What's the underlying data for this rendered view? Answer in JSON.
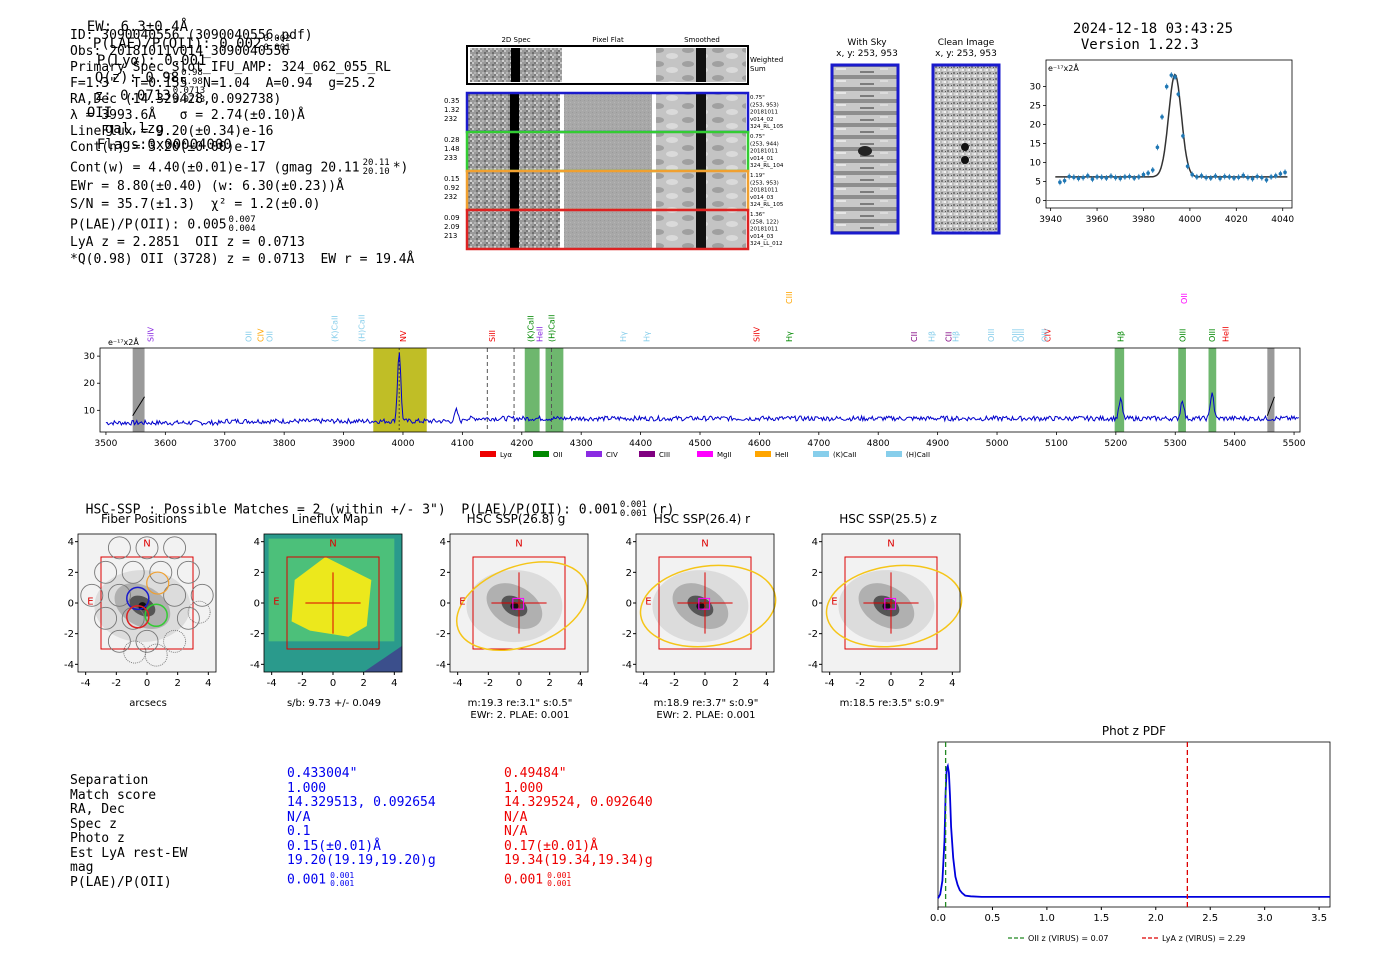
{
  "header": {
    "ew": "EW: 6.3±0.4Å",
    "plae": "P(LAE)/P(OII): 0.002",
    "plae_sup": "0.002",
    "plae_sub": "0.001",
    "plya": "P(Lyα): 0.001",
    "qz": "Q(z): 0.98",
    "qz_sup": "0.98",
    "qz_sub": "0.98",
    "z": "z: 0.0713",
    "z_sup": "0.0713",
    "z_sub": "0.0713",
    "z_line": "OII",
    "flags_a": "gal,lzg",
    "flags_b": "Flags:0x00004000",
    "timestamp": "2024-12-18 03:43:25",
    "version": "Version 1.22.3"
  },
  "info": {
    "id": "ID: 3090040556 (3090040556.pdf)",
    "obs": "Obs: 20181011v014_3090040556",
    "primary": "Primary Spec_Slot_IFU_AMP: 324_062_055_RL",
    "params": "F=1.3\"  T=0.155  N=1.04  A=0.94  g=25.2",
    "radec": "RA,Dec (14.329428,0.092738)",
    "lambda": "λ = 3993.6Å   σ = 2.74(±0.10)Å",
    "lineflux": "LineFlux = 9.20(±0.34)e-16",
    "contn": "Cont(n) = 3.20(±0.00)e-17",
    "contw": "Cont(w) = 4.40(±0.01)e-17 (gmag 20.11",
    "contw_sup": "20.11",
    "contw_sub": "20.10",
    "contw_end": "*)",
    "ewr": "EWr = 8.80(±0.40) (w: 6.30(±0.23))Å",
    "sn": "S/N = 35.7(±1.3)  χ² = 1.2(±0.0)",
    "plae2": "P(LAE)/P(OII): 0.005",
    "plae2_sup": "0.007",
    "plae2_sub": "0.004",
    "lya": "LyA z = 2.2851  OII z = 0.0713",
    "qline": "*Q(0.98) OII (3728) z = 0.0713  EW r = 19.4Å"
  },
  "cutouts": {
    "col_headers": [
      "2D Spec",
      "Pixel Flat",
      "Smoothed"
    ],
    "weighted_label": "Weighted\nSum",
    "rows": [
      {
        "nums": [
          "0.35",
          "1.32",
          "232"
        ],
        "color": "#1a1acc",
        "meta": [
          "0.75\"",
          "(253, 953)",
          "20181011",
          "v014_02",
          "324_RL_105"
        ]
      },
      {
        "nums": [
          "0.28",
          "1.48",
          "233"
        ],
        "color": "#33cc33",
        "meta": [
          "0.75\"",
          "(253, 944)",
          "20181011",
          "v014_01",
          "324_RL_104"
        ]
      },
      {
        "nums": [
          "0.15",
          "0.92",
          "232"
        ],
        "color": "#f0a030",
        "meta": [
          "1.19\"",
          "(253, 953)",
          "20181011",
          "v014_03",
          "324_RL_105"
        ]
      },
      {
        "nums": [
          "0.09",
          "2.09",
          "213"
        ],
        "color": "#dd2222",
        "meta": [
          "1.36\"",
          "(258, 122)",
          "20181011",
          "v014_03",
          "324_LL_012"
        ]
      }
    ]
  },
  "sky": {
    "with_sky_title": "With Sky",
    "with_sky_coords": "x, y: 253, 953",
    "clean_title": "Clean Image",
    "clean_coords": "x, y: 253, 953"
  },
  "line_fit": {
    "unit": "e⁻¹⁷x2Å",
    "x_ticks": [
      "3940",
      "3960",
      "3980",
      "4000",
      "4020",
      "4040"
    ],
    "y_ticks": [
      "0",
      "5",
      "10",
      "15",
      "20",
      "25",
      "30"
    ]
  },
  "full_spec": {
    "unit": "e⁻¹⁷x2Å",
    "x_ticks": [
      "3500",
      "3600",
      "3700",
      "3800",
      "3900",
      "4000",
      "4100",
      "4200",
      "4300",
      "4400",
      "4500",
      "4600",
      "4700",
      "4800",
      "4900",
      "5000",
      "5100",
      "5200",
      "5300",
      "5400",
      "5500"
    ],
    "y_ticks": [
      "10",
      "20",
      "30"
    ],
    "legend": [
      {
        "label": "Lyα",
        "color": "#ee0000"
      },
      {
        "label": "OII",
        "color": "#008800"
      },
      {
        "label": "CIV",
        "color": "#8a2be2"
      },
      {
        "label": "CIII",
        "color": "#800080"
      },
      {
        "label": "MgII",
        "color": "#ff00ff"
      },
      {
        "label": "HeII",
        "color": "#ffa500"
      },
      {
        "label": "(K)CaII",
        "color": "#87ceeb"
      },
      {
        "label": "(H)CaII",
        "color": "#87ceeb"
      }
    ],
    "line_labels": [
      {
        "text": "SiIV",
        "w": 3575,
        "color": "#8a2be2"
      },
      {
        "text": "OII",
        "w": 3740,
        "color": "#87ceeb"
      },
      {
        "text": "CIV",
        "w": 3760,
        "color": "#ffa500"
      },
      {
        "text": "OII",
        "w": 3775,
        "color": "#87ceeb"
      },
      {
        "text": "(K)CaII",
        "w": 3885,
        "color": "#87ceeb"
      },
      {
        "text": "(H)CaII",
        "w": 3930,
        "color": "#87ceeb"
      },
      {
        "text": "NV",
        "w": 4000,
        "color": "#ee0000"
      },
      {
        "text": "SiII",
        "w": 4150,
        "color": "#ee0000"
      },
      {
        "text": "(K)CaII",
        "w": 4215,
        "color": "#008800"
      },
      {
        "text": "HeII",
        "w": 4230,
        "color": "#8a2be2"
      },
      {
        "text": "(H)CaII",
        "w": 4250,
        "color": "#008800"
      },
      {
        "text": "Hγ",
        "w": 4370,
        "color": "#87ceeb"
      },
      {
        "text": "Hγ",
        "w": 4410,
        "color": "#87ceeb"
      },
      {
        "text": "SiIV",
        "w": 4595,
        "color": "#ee0000"
      },
      {
        "text": "Hγ",
        "w": 4650,
        "color": "#008800"
      },
      {
        "text": "CIII",
        "w": 4650,
        "color": "#ffa500"
      },
      {
        "text": "CII",
        "w": 4860,
        "color": "#800080"
      },
      {
        "text": "Hβ",
        "w": 4890,
        "color": "#87ceeb"
      },
      {
        "text": "CII",
        "w": 4918,
        "color": "#800080"
      },
      {
        "text": "Hβ",
        "w": 4930,
        "color": "#87ceeb"
      },
      {
        "text": "OIII",
        "w": 4990,
        "color": "#87ceeb"
      },
      {
        "text": "OIII",
        "w": 5030,
        "color": "#87ceeb"
      },
      {
        "text": "OIII",
        "w": 5040,
        "color": "#87ceeb"
      },
      {
        "text": "CIV",
        "w": 5085,
        "color": "#ee0000"
      },
      {
        "text": "OIII",
        "w": 5080,
        "color": "#87ceeb"
      },
      {
        "text": "Hβ",
        "w": 5208,
        "color": "#008800"
      },
      {
        "text": "OIII",
        "w": 5312,
        "color": "#008800"
      },
      {
        "text": "OII",
        "w": 5315,
        "color": "#ff00ff"
      },
      {
        "text": "OIII",
        "w": 5362,
        "color": "#008800"
      },
      {
        "text": "HeII",
        "w": 5385,
        "color": "#ee0000"
      }
    ]
  },
  "hsc": {
    "header": "HSC-SSP : Possible Matches = 2 (within +/- 3\")  P(LAE)/P(OII): 0.001",
    "header_sup": "0.001",
    "header_sub": "0.001",
    "header_end": "(r)",
    "panels": [
      {
        "title": "Fiber Positions",
        "cap1": "arcsecs",
        "cap2": ""
      },
      {
        "title": "Lineflux Map",
        "cap1": "s/b: 9.73 +/- 0.049",
        "cap2": ""
      },
      {
        "title": "HSC SSP(26.8) g",
        "cap1": "m:19.3   re:3.1\"   s:0.5\"",
        "cap2": "EWr: 2. PLAE: 0.001"
      },
      {
        "title": "HSC SSP(26.4) r",
        "cap1": "m:18.9   re:3.7\"   s:0.9\"",
        "cap2": "EWr: 2. PLAE: 0.001"
      },
      {
        "title": "HSC SSP(25.5) z",
        "cap1": "m:18.5   re:3.5\"   s:0.9\"",
        "cap2": ""
      }
    ],
    "axis_ticks_x": [
      "-4",
      "-2",
      "0",
      "2",
      "4"
    ],
    "axis_ticks_y": [
      "4",
      "2",
      "0",
      "-2",
      "-4"
    ],
    "compass_n": "N",
    "compass_e": "E"
  },
  "matches": {
    "labels": [
      "Separation",
      "Match score",
      "RA, Dec",
      "Spec z",
      "Photo z",
      "Est LyA rest-EW",
      "mag",
      "P(LAE)/P(OII)"
    ],
    "col1": [
      "0.433004\"",
      "1.000",
      "14.329513, 0.092654",
      "N/A",
      "0.1",
      "0.15(±0.01)Å",
      "19.20(19.19,19.20)g",
      "0.001"
    ],
    "col1_sup": "0.001",
    "col1_sub": "0.001",
    "col2": [
      "0.49484\"",
      "1.000",
      "14.329524, 0.092640",
      "N/A",
      "N/A",
      "0.17(±0.01)Å",
      "19.34(19.34,19.34)g",
      "0.001"
    ],
    "col2_sup": "0.001",
    "col2_sub": "0.001",
    "col1_color": "#0000ee",
    "col2_color": "#ee0000"
  },
  "photz": {
    "title": "Phot z PDF",
    "x_ticks": [
      "0.0",
      "0.5",
      "1.0",
      "1.5",
      "2.0",
      "2.5",
      "3.0",
      "3.5"
    ],
    "legend_oii": "OII z (VIRUS) = 0.07",
    "legend_lya": "LyA z (VIRUS) = 2.29"
  },
  "chart_data": [
    {
      "type": "line",
      "title": "Line fit",
      "ylabel": "e-17 x2Å",
      "xlim": [
        3938,
        4044
      ],
      "ylim": [
        -2,
        37
      ],
      "x": [
        3944,
        3946,
        3948,
        3950,
        3952,
        3954,
        3956,
        3958,
        3960,
        3962,
        3964,
        3966,
        3968,
        3970,
        3972,
        3974,
        3976,
        3978,
        3980,
        3982,
        3984,
        3986,
        3988,
        3990,
        3992,
        3993.6,
        3995,
        3997,
        3999,
        4001,
        4003,
        4005,
        4007,
        4009,
        4011,
        4013,
        4015,
        4017,
        4019,
        4021,
        4023,
        4025,
        4027,
        4029,
        4031,
        4033,
        4035,
        4037,
        4039,
        4041
      ],
      "y": [
        4.8,
        5.2,
        6.3,
        6.1,
        5.8,
        6.0,
        6.5,
        5.6,
        6.2,
        6.1,
        5.9,
        6.4,
        6.0,
        5.8,
        6.2,
        6.3,
        5.9,
        6.2,
        6.8,
        7.2,
        8.0,
        14.0,
        22.0,
        30.0,
        33.0,
        32.5,
        28.0,
        17.0,
        9.0,
        6.8,
        6.2,
        6.5,
        6.0,
        5.9,
        6.4,
        5.8,
        6.3,
        6.2,
        5.9,
        6.1,
        6.6,
        6.0,
        5.7,
        6.3,
        6.0,
        5.4,
        6.2,
        6.5,
        7.0,
        7.4
      ],
      "model_center": 3993.6,
      "model_sigma": 2.74,
      "model_peak": 27,
      "model_cont": 6.2
    },
    {
      "type": "line",
      "title": "Full spectrum",
      "xlim": [
        3490,
        5510
      ],
      "ylim": [
        2,
        33
      ],
      "continuum": 6,
      "emission_peaks": [
        {
          "w": 3993.6,
          "peak": 32
        },
        {
          "w": 4090,
          "peak": 10
        },
        {
          "w": 5208,
          "peak": 13
        },
        {
          "w": 5312,
          "peak": 13
        },
        {
          "w": 5362,
          "peak": 16
        }
      ],
      "highlight_regions": [
        {
          "x0": 3950,
          "x1": 4040,
          "color": "#b5b300"
        },
        {
          "x0": 4205,
          "x1": 4230,
          "color": "#55aa55"
        },
        {
          "x0": 4240,
          "x1": 4270,
          "color": "#55aa55"
        },
        {
          "x0": 5198,
          "x1": 5214,
          "color": "#55aa55"
        },
        {
          "x0": 5305,
          "x1": 5318,
          "color": "#55aa55"
        },
        {
          "x0": 5356,
          "x1": 5369,
          "color": "#55aa55"
        }
      ],
      "mask_regions": [
        {
          "x0": 3545,
          "x1": 3565
        },
        {
          "x0": 5455,
          "x1": 5467
        }
      ],
      "dashed_lines": [
        4142,
        4187,
        4250
      ]
    },
    {
      "type": "line",
      "title": "Phot z PDF",
      "xlim": [
        0,
        3.6
      ],
      "x": [
        0.0,
        0.02,
        0.04,
        0.06,
        0.07,
        0.08,
        0.09,
        0.1,
        0.11,
        0.12,
        0.14,
        0.16,
        0.18,
        0.2,
        0.22,
        0.25,
        0.3,
        0.4,
        0.6,
        1.0,
        1.5,
        2.0,
        2.5,
        3.0,
        3.5,
        3.6
      ],
      "y": [
        0.02,
        0.05,
        0.15,
        0.45,
        0.8,
        0.98,
        1.0,
        0.95,
        0.78,
        0.55,
        0.32,
        0.18,
        0.12,
        0.08,
        0.06,
        0.04,
        0.035,
        0.03,
        0.03,
        0.03,
        0.03,
        0.03,
        0.03,
        0.03,
        0.03,
        0.03
      ],
      "oii_z": 0.07,
      "lya_z": 2.29
    }
  ]
}
